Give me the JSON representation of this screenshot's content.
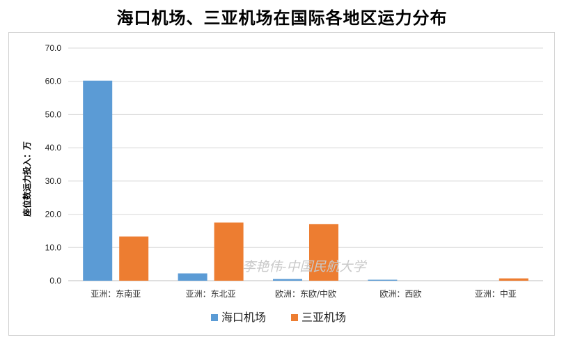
{
  "chart_data": {
    "type": "bar",
    "title": "海口机场、三亚机场在国际各地区运力分布",
    "ylabel": "座位数运力投入：万",
    "xlabel": "",
    "categories": [
      "亚洲：东南亚",
      "亚洲：东北亚",
      "欧洲：东欧/中欧",
      "欧洲：西欧",
      "亚洲：中亚"
    ],
    "series": [
      {
        "name": "海口机场",
        "values": [
          60.2,
          2.2,
          0.5,
          0.3,
          0.0
        ],
        "color": "#5b9bd5"
      },
      {
        "name": "三亚机场",
        "values": [
          13.3,
          17.5,
          17.0,
          0.0,
          0.7
        ],
        "color": "#ed7d31"
      }
    ],
    "ylim": [
      0,
      70
    ],
    "yticks": [
      "0.0",
      "10.0",
      "20.0",
      "30.0",
      "40.0",
      "50.0",
      "60.0",
      "70.0"
    ],
    "grid": true,
    "legend": "bottom",
    "watermark": "李艳伟-中国民航大学"
  }
}
